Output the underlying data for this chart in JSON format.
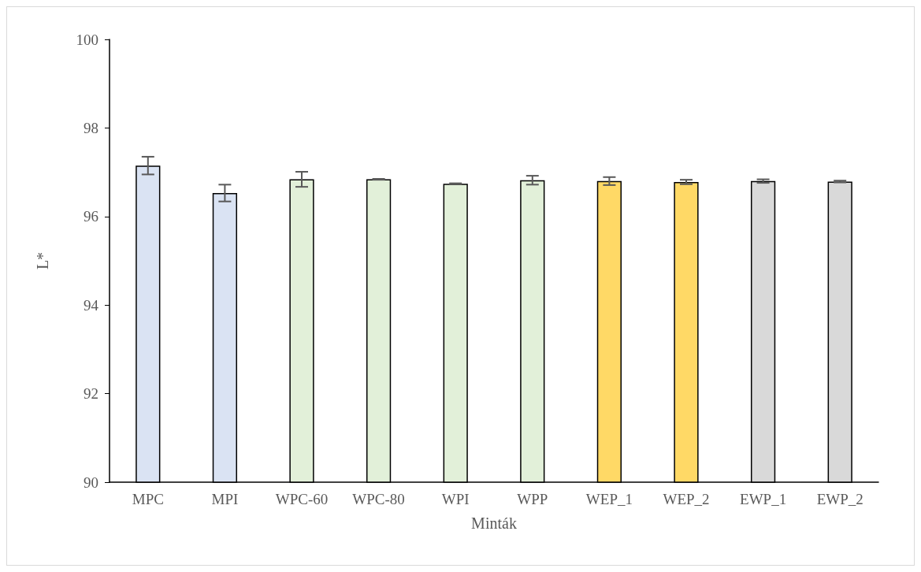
{
  "chart_data": {
    "type": "bar",
    "xlabel": "Minták",
    "ylabel": "L*",
    "categories": [
      "MPC",
      "MPI",
      "WPC-60",
      "WPC-80",
      "WPI",
      "WPP",
      "WEP_1",
      "WEP_2",
      "EWP_1",
      "EWP_2"
    ],
    "values": [
      97.15,
      96.53,
      96.84,
      96.84,
      96.74,
      96.82,
      96.8,
      96.78,
      96.8,
      96.79
    ],
    "errors": [
      0.2,
      0.19,
      0.17,
      0.01,
      0.01,
      0.1,
      0.09,
      0.05,
      0.04,
      0.02
    ],
    "colors": [
      "#dae3f3",
      "#dae3f3",
      "#e2f0d9",
      "#e2f0d9",
      "#e2f0d9",
      "#e2f0d9",
      "#ffd966",
      "#ffd966",
      "#d9d9d9",
      "#d9d9d9"
    ],
    "ylim": [
      90,
      100
    ],
    "yticks": [
      90,
      92,
      94,
      96,
      98,
      100
    ],
    "grid": false
  }
}
